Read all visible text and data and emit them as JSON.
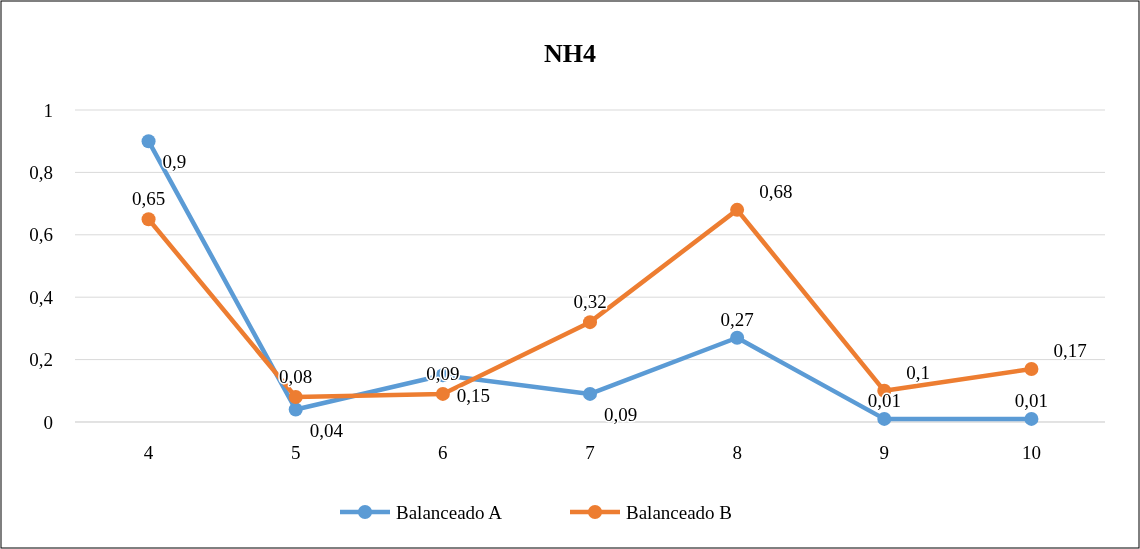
{
  "chart_data": {
    "type": "line",
    "title": "NH4",
    "categories": [
      "4",
      "5",
      "6",
      "7",
      "8",
      "9",
      "10"
    ],
    "series": [
      {
        "name": "Balanceado A",
        "color": "#5b9bd5",
        "values": [
          0.9,
          0.04,
          0.15,
          0.09,
          0.27,
          0.01,
          0.01
        ],
        "value_labels": [
          "0,9",
          "0,04",
          "0,15",
          "0,09",
          "0,27",
          "0,01",
          "0,01"
        ]
      },
      {
        "name": "Balanceado B",
        "color": "#ed7d31",
        "values": [
          0.65,
          0.08,
          0.09,
          0.32,
          0.68,
          0.1,
          0.17
        ],
        "value_labels": [
          "0,65",
          "0,08",
          "0,09",
          "0,32",
          "0,68",
          "0,1",
          "0,17"
        ]
      }
    ],
    "ylim": [
      0,
      1
    ],
    "yticks": [
      0,
      {
        "value": 0.2,
        "label": "0,2"
      },
      {
        "value": 0.4,
        "label": "0,4"
      },
      {
        "value": 0.6,
        "label": "0,6"
      },
      {
        "value": 0.8,
        "label": "0,8"
      },
      1
    ],
    "grid": "y",
    "legend": "bottom",
    "marker": "circle",
    "line_style": "solid"
  }
}
